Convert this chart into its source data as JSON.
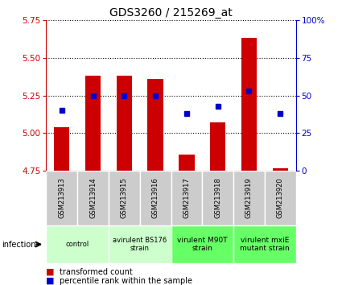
{
  "title": "GDS3260 / 215269_at",
  "samples": [
    "GSM213913",
    "GSM213914",
    "GSM213915",
    "GSM213916",
    "GSM213917",
    "GSM213918",
    "GSM213919",
    "GSM213920"
  ],
  "bar_values": [
    5.04,
    5.38,
    5.38,
    5.36,
    4.86,
    5.07,
    5.63,
    4.77
  ],
  "percentile_values": [
    40,
    50,
    50,
    50,
    38,
    43,
    53,
    38
  ],
  "ylim_left": [
    4.75,
    5.75
  ],
  "ylim_right": [
    0,
    100
  ],
  "yticks_left": [
    4.75,
    5.0,
    5.25,
    5.5,
    5.75
  ],
  "yticks_right": [
    0,
    25,
    50,
    75,
    100
  ],
  "bar_color": "#cc0000",
  "percentile_color": "#0000cc",
  "bar_bottom": 4.75,
  "group_spans": [
    {
      "start": 0,
      "end": 1,
      "label": "control",
      "color": "#ccffcc"
    },
    {
      "start": 2,
      "end": 3,
      "label": "avirulent BS176\nstrain",
      "color": "#ccffcc"
    },
    {
      "start": 4,
      "end": 5,
      "label": "virulent M90T\nstrain",
      "color": "#66ff66"
    },
    {
      "start": 6,
      "end": 7,
      "label": "virulent mxiE\nmutant strain",
      "color": "#66ff66"
    }
  ],
  "infection_label": "infection",
  "legend_bar_label": "transformed count",
  "legend_pct_label": "percentile rank within the sample",
  "axis_color_left": "#cc0000",
  "axis_color_right": "#0000cc",
  "bg_plot": "#ffffff",
  "sample_box_color": "#cccccc",
  "border_color": "#000000",
  "title_fontsize": 10,
  "tick_fontsize": 7.5,
  "label_fontsize": 6,
  "legend_fontsize": 7
}
